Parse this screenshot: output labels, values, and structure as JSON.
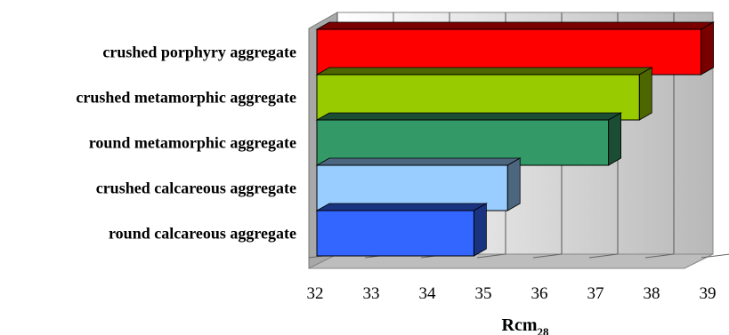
{
  "chart_data": {
    "type": "bar",
    "orientation": "horizontal",
    "style": "3d",
    "categories": [
      "crushed porphyry aggregate",
      "crushed metamorphic aggregate",
      "round metamorphic aggregate",
      "crushed calcareous aggregate",
      "round calcareous aggregate"
    ],
    "values": [
      38.85,
      37.75,
      37.2,
      35.4,
      34.8
    ],
    "colors": [
      "#ff0000",
      "#99cc00",
      "#339966",
      "#99ccff",
      "#3366ff"
    ],
    "side_colors": [
      "#7a0000",
      "#4d6600",
      "#1a4d33",
      "#4d6680",
      "#1a3380"
    ],
    "xlim": [
      32,
      39
    ],
    "xticks": [
      "32",
      "33",
      "34",
      "35",
      "36",
      "37",
      "38",
      "39"
    ],
    "xlabel": "Rcm",
    "xlabel_subscript": "28",
    "grid": true,
    "legend": "none"
  }
}
